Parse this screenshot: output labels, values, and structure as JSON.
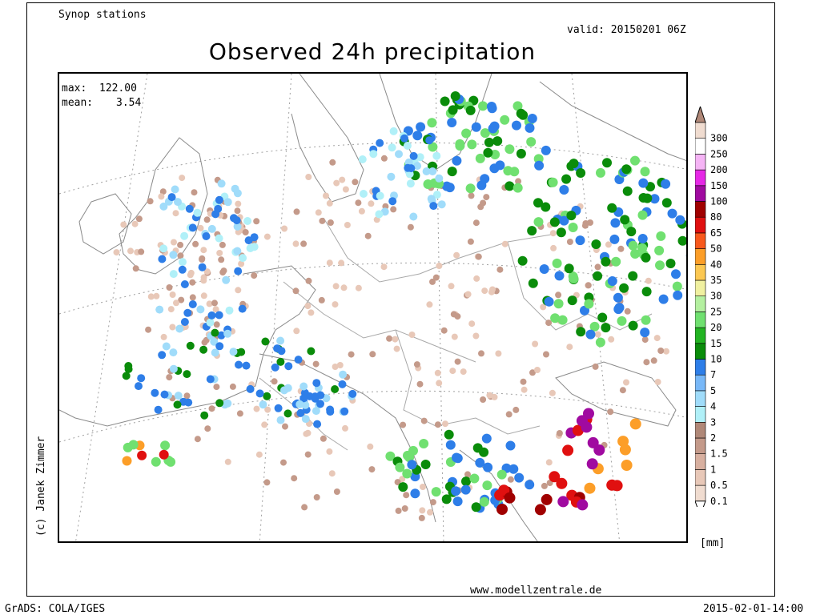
{
  "header": {
    "subtitle": "Synop stations",
    "valid": "valid: 20150201 06Z",
    "title": "Observed 24h precipitation"
  },
  "stats": {
    "max_label": "max:",
    "max_value": "122.00",
    "mean_label": "mean:",
    "mean_value": "3.54"
  },
  "legend": {
    "unit": "[mm]",
    "levels": [
      "0.1",
      "0.5",
      "1",
      "1.5",
      "2",
      "3",
      "4",
      "5",
      "7",
      "10",
      "15",
      "20",
      "25",
      "30",
      "35",
      "40",
      "50",
      "65",
      "80",
      "100",
      "150",
      "200",
      "250",
      "300"
    ],
    "colors": [
      "#f0dcd0",
      "#e8c8b8",
      "#d8b0a0",
      "#c49a8a",
      "#b08878",
      "#b0f0f8",
      "#a0dcfa",
      "#78b8f8",
      "#2e7ee8",
      "#0a8c0a",
      "#22b422",
      "#70e070",
      "#b4f0a0",
      "#f0f0a0",
      "#fcc852",
      "#fc9e28",
      "#f8581c",
      "#e01010",
      "#a00000",
      "#a00aa0",
      "#e628e6",
      "#f5b4f5",
      "#ffffff",
      "#f0dcd0"
    ],
    "top_arrow_color": "#b08878"
  },
  "footer": {
    "url": "www.modellzentrale.de",
    "grads": "GrADS: COLA/IGES",
    "timestamp": "2015-02-01-14:00",
    "copyright": "(c) Janek Zimmer"
  },
  "map": {
    "region": "Europe",
    "station_colors": {
      "dry": "#e8c8b8",
      "light": "#c49a8a",
      "cyan": "#b0f0f8",
      "lightblue": "#a0dcfa",
      "blue": "#2e7ee8",
      "green": "#0a8c0a",
      "lightgreen": "#70e070",
      "orange": "#fc9e28",
      "red": "#e01010",
      "darkred": "#a00000",
      "purple": "#a00aa0"
    }
  }
}
